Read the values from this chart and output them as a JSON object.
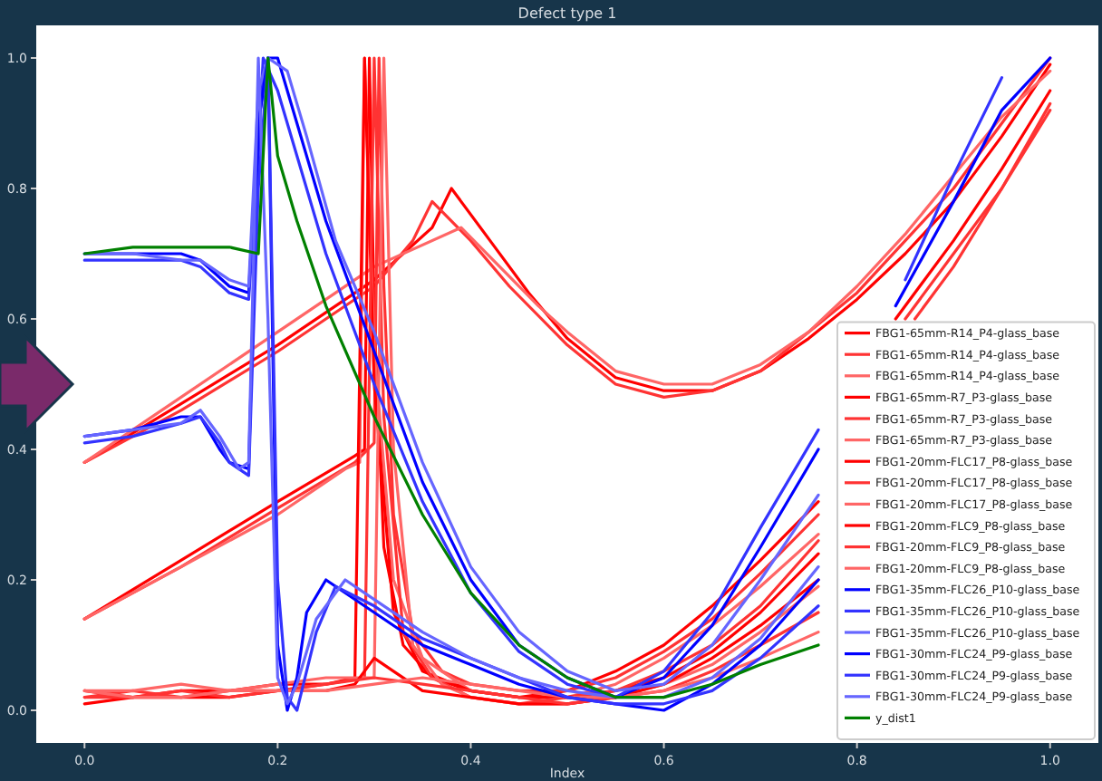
{
  "chart_data": {
    "type": "line",
    "title": "Defect type 1",
    "xlabel": "Index",
    "xlim": [
      -0.05,
      1.05
    ],
    "ylim": [
      -0.05,
      1.05
    ],
    "xticks": [
      {
        "value": 0,
        "label": "0.0"
      },
      0.2,
      0.4,
      0.6,
      0.8,
      {
        "value": 1,
        "label": "1.0"
      }
    ],
    "yticks": [
      {
        "value": 0,
        "label": "0.0"
      },
      0.2,
      0.4,
      0.6,
      0.8,
      {
        "value": 1,
        "label": "1.0"
      }
    ],
    "grid": false,
    "legend": "bottom right",
    "line_style": "solid",
    "marker": "none",
    "series": [
      {
        "name": "FBG1-65mm-R14_P4-glass_base",
        "color": "#ff0000",
        "x": [
          0,
          0.1,
          0.2,
          0.3,
          0.36,
          0.38,
          0.42,
          0.46,
          0.5,
          0.55,
          0.6,
          0.65,
          0.7,
          0.75,
          0.8,
          0.85,
          0.9,
          0.95,
          1.0
        ],
        "values": [
          0.38,
          0.47,
          0.56,
          0.66,
          0.74,
          0.8,
          0.72,
          0.64,
          0.57,
          0.51,
          0.49,
          0.49,
          0.52,
          0.57,
          0.63,
          0.7,
          0.78,
          0.88,
          0.99
        ]
      },
      {
        "name": "FBG1-65mm-R14_P4-glass_base",
        "color": "#ff3333",
        "x": [
          0,
          0.1,
          0.2,
          0.3,
          0.34,
          0.36,
          0.4,
          0.44,
          0.5,
          0.55,
          0.6,
          0.65,
          0.7,
          0.75,
          0.8,
          0.85,
          0.9,
          0.95,
          1.0
        ],
        "values": [
          0.38,
          0.46,
          0.55,
          0.65,
          0.72,
          0.78,
          0.72,
          0.65,
          0.56,
          0.5,
          0.48,
          0.49,
          0.52,
          0.58,
          0.64,
          0.72,
          0.8,
          0.9,
          1.0
        ]
      },
      {
        "name": "FBG1-65mm-R14_P4-glass_base",
        "color": "#ff6666",
        "x": [
          0,
          0.1,
          0.2,
          0.3,
          0.39,
          0.43,
          0.47,
          0.5,
          0.55,
          0.6,
          0.65,
          0.7,
          0.75,
          0.8,
          0.85,
          0.9,
          0.95,
          1.0
        ],
        "values": [
          0.38,
          0.48,
          0.58,
          0.68,
          0.74,
          0.68,
          0.62,
          0.58,
          0.52,
          0.5,
          0.5,
          0.53,
          0.58,
          0.65,
          0.73,
          0.82,
          0.91,
          0.98
        ]
      },
      {
        "name": "FBG1-65mm-R7_P3-glass_base",
        "color": "#ff0000",
        "x": [
          0,
          0.1,
          0.2,
          0.28,
          0.29,
          0.295,
          0.3,
          0.31,
          0.33,
          0.36,
          0.4,
          0.45,
          0.5,
          0.55,
          0.6,
          0.65,
          0.7,
          0.76,
          0.8,
          0.84,
          0.9,
          0.95,
          1.0
        ],
        "values": [
          0.14,
          0.23,
          0.32,
          0.39,
          0.4,
          1.0,
          0.6,
          0.25,
          0.1,
          0.05,
          0.03,
          0.02,
          0.03,
          0.06,
          0.1,
          0.16,
          0.23,
          0.32,
          null,
          0.6,
          0.72,
          0.83,
          0.95
        ]
      },
      {
        "name": "FBG1-65mm-R7_P3-glass_base",
        "color": "#ff3333",
        "x": [
          0,
          0.1,
          0.2,
          0.28,
          0.3,
          0.305,
          0.31,
          0.32,
          0.34,
          0.37,
          0.4,
          0.45,
          0.5,
          0.55,
          0.6,
          0.65,
          0.7,
          0.76,
          0.8,
          0.85,
          0.9,
          0.95,
          1.0
        ],
        "values": [
          0.14,
          0.22,
          0.31,
          0.38,
          0.41,
          1.0,
          0.65,
          0.3,
          0.12,
          0.06,
          0.04,
          0.03,
          0.03,
          0.05,
          0.09,
          0.14,
          0.21,
          0.3,
          null,
          0.6,
          0.7,
          0.8,
          0.92
        ]
      },
      {
        "name": "FBG1-65mm-R7_P3-glass_base",
        "color": "#ff6666",
        "x": [
          0,
          0.1,
          0.2,
          0.27,
          0.285,
          0.29,
          0.3,
          0.32,
          0.35,
          0.4,
          0.45,
          0.5,
          0.55,
          0.6,
          0.65,
          0.7,
          0.76
        ],
        "values": [
          0.14,
          0.22,
          0.3,
          0.37,
          0.38,
          1.0,
          0.55,
          0.2,
          0.08,
          0.03,
          0.02,
          0.02,
          0.04,
          0.08,
          0.13,
          0.19,
          0.27
        ]
      },
      {
        "name": "FBG1-20mm-FLC17_P8-glass_base",
        "color": "#ff0000",
        "x": [
          0,
          0.05,
          0.1,
          0.15,
          0.2,
          0.25,
          0.28,
          0.29,
          0.3,
          0.32,
          0.35,
          0.4,
          0.45,
          0.5,
          0.55,
          0.6,
          0.65,
          0.7,
          0.76
        ],
        "values": [
          0.03,
          0.02,
          0.03,
          0.03,
          0.04,
          0.04,
          0.05,
          1.0,
          0.5,
          0.15,
          0.06,
          0.03,
          0.02,
          0.02,
          0.03,
          0.05,
          0.09,
          0.15,
          0.24
        ]
      },
      {
        "name": "FBG1-20mm-FLC17_P8-glass_base",
        "color": "#ff3333",
        "x": [
          0,
          0.05,
          0.1,
          0.15,
          0.2,
          0.25,
          0.29,
          0.3,
          0.31,
          0.33,
          0.36,
          0.4,
          0.45,
          0.5,
          0.55,
          0.6,
          0.65,
          0.7,
          0.76,
          0.8,
          0.86,
          0.9,
          0.95,
          1.0
        ],
        "values": [
          0.02,
          0.03,
          0.02,
          0.03,
          0.03,
          0.04,
          0.05,
          1.0,
          0.45,
          0.12,
          0.05,
          0.02,
          0.01,
          0.02,
          0.03,
          0.06,
          0.1,
          0.16,
          0.26,
          null,
          0.6,
          0.68,
          0.8,
          0.93
        ]
      },
      {
        "name": "FBG1-20mm-FLC17_P8-glass_base",
        "color": "#ff6666",
        "x": [
          0,
          0.05,
          0.1,
          0.15,
          0.2,
          0.25,
          0.3,
          0.31,
          0.32,
          0.34,
          0.37,
          0.4,
          0.45,
          0.5,
          0.55,
          0.6,
          0.65,
          0.7,
          0.76
        ],
        "values": [
          0.03,
          0.03,
          0.04,
          0.03,
          0.04,
          0.05,
          0.05,
          1.0,
          0.4,
          0.1,
          0.04,
          0.02,
          0.01,
          0.01,
          0.02,
          0.04,
          0.07,
          0.12,
          0.19
        ]
      },
      {
        "name": "FBG1-20mm-FLC9_P8-glass_base",
        "color": "#ff0000",
        "x": [
          0,
          0.05,
          0.1,
          0.15,
          0.2,
          0.25,
          0.28,
          0.3,
          0.32,
          0.35,
          0.4,
          0.45,
          0.5,
          0.55,
          0.6,
          0.65,
          0.7,
          0.76
        ],
        "values": [
          0.01,
          0.02,
          0.02,
          0.02,
          0.03,
          0.03,
          0.04,
          0.08,
          0.06,
          0.03,
          0.02,
          0.01,
          0.01,
          0.02,
          0.04,
          0.08,
          0.13,
          0.2
        ]
      },
      {
        "name": "FBG1-20mm-FLC9_P8-glass_base",
        "color": "#ff3333",
        "x": [
          0,
          0.05,
          0.1,
          0.15,
          0.2,
          0.25,
          0.3,
          0.35,
          0.4,
          0.45,
          0.5,
          0.55,
          0.6,
          0.65,
          0.7,
          0.76
        ],
        "values": [
          0.02,
          0.02,
          0.03,
          0.02,
          0.03,
          0.04,
          0.05,
          0.04,
          0.03,
          0.02,
          0.01,
          0.02,
          0.03,
          0.06,
          0.1,
          0.15
        ]
      },
      {
        "name": "FBG1-20mm-FLC9_P8-glass_base",
        "color": "#ff6666",
        "x": [
          0,
          0.05,
          0.1,
          0.15,
          0.2,
          0.25,
          0.3,
          0.35,
          0.4,
          0.45,
          0.5,
          0.55,
          0.6,
          0.65,
          0.7,
          0.76
        ],
        "values": [
          0.03,
          0.02,
          0.02,
          0.03,
          0.03,
          0.03,
          0.04,
          0.05,
          0.04,
          0.03,
          0.02,
          0.02,
          0.03,
          0.05,
          0.08,
          0.12
        ]
      },
      {
        "name": "FBG1-35mm-FLC26_P10-glass_base",
        "color": "#0000ff",
        "x": [
          0,
          0.05,
          0.1,
          0.12,
          0.15,
          0.17,
          0.18,
          0.19,
          0.2,
          0.22,
          0.25,
          0.3,
          0.35,
          0.4,
          0.45,
          0.5,
          0.55,
          0.6,
          0.65,
          0.7,
          0.76,
          0.8,
          0.84,
          0.9,
          0.95,
          1.0
        ],
        "values": [
          0.7,
          0.7,
          0.7,
          0.69,
          0.65,
          0.64,
          0.9,
          1.0,
          1.0,
          0.9,
          0.75,
          0.55,
          0.35,
          0.2,
          0.1,
          0.05,
          0.02,
          0.05,
          0.13,
          0.25,
          0.4,
          null,
          0.62,
          0.78,
          0.92,
          1.0
        ]
      },
      {
        "name": "FBG1-35mm-FLC26_P10-glass_base",
        "color": "#3333ff",
        "x": [
          0,
          0.05,
          0.1,
          0.12,
          0.15,
          0.17,
          0.18,
          0.185,
          0.2,
          0.22,
          0.25,
          0.3,
          0.35,
          0.4,
          0.45,
          0.5,
          0.55,
          0.6,
          0.65,
          0.7,
          0.76,
          0.8,
          0.85,
          0.9,
          0.95
        ],
        "values": [
          0.69,
          0.69,
          0.69,
          0.68,
          0.64,
          0.63,
          0.85,
          1.0,
          0.95,
          0.85,
          0.7,
          0.5,
          0.32,
          0.18,
          0.09,
          0.04,
          0.02,
          0.06,
          0.15,
          0.28,
          0.43,
          null,
          0.66,
          0.82,
          0.97
        ]
      },
      {
        "name": "FBG1-35mm-FLC26_P10-glass_base",
        "color": "#6666ff",
        "x": [
          0,
          0.05,
          0.1,
          0.12,
          0.15,
          0.17,
          0.18,
          0.19,
          0.21,
          0.23,
          0.26,
          0.3,
          0.35,
          0.4,
          0.45,
          0.5,
          0.55,
          0.6,
          0.65,
          0.7,
          0.76
        ],
        "values": [
          0.7,
          0.7,
          0.69,
          0.69,
          0.66,
          0.65,
          0.95,
          1.0,
          0.98,
          0.88,
          0.72,
          0.58,
          0.38,
          0.22,
          0.12,
          0.06,
          0.03,
          0.04,
          0.1,
          0.2,
          0.33
        ]
      },
      {
        "name": "FBG1-30mm-FLC24_P9-glass_base",
        "color": "#0000ff",
        "x": [
          0,
          0.05,
          0.1,
          0.12,
          0.14,
          0.15,
          0.17,
          0.18,
          0.19,
          0.2,
          0.21,
          0.22,
          0.23,
          0.25,
          0.3,
          0.35,
          0.4,
          0.45,
          0.5,
          0.55,
          0.6,
          0.65,
          0.7,
          0.76
        ],
        "values": [
          0.42,
          0.43,
          0.45,
          0.45,
          0.4,
          0.38,
          0.37,
          0.9,
          1.0,
          0.1,
          0.0,
          0.05,
          0.15,
          0.2,
          0.15,
          0.1,
          0.07,
          0.04,
          0.02,
          0.01,
          0.0,
          0.04,
          0.1,
          0.2
        ]
      },
      {
        "name": "FBG1-30mm-FLC24_P9-glass_base",
        "color": "#3333ff",
        "x": [
          0,
          0.05,
          0.1,
          0.12,
          0.14,
          0.15,
          0.17,
          0.18,
          0.19,
          0.2,
          0.21,
          0.22,
          0.24,
          0.26,
          0.3,
          0.35,
          0.4,
          0.45,
          0.5,
          0.55,
          0.6,
          0.65,
          0.7,
          0.76
        ],
        "values": [
          0.41,
          0.42,
          0.44,
          0.45,
          0.41,
          0.38,
          0.36,
          0.8,
          1.0,
          0.2,
          0.02,
          0.0,
          0.12,
          0.19,
          0.16,
          0.11,
          0.08,
          0.05,
          0.02,
          0.01,
          0.01,
          0.03,
          0.08,
          0.16
        ]
      },
      {
        "name": "FBG1-30mm-FLC24_P9-glass_base",
        "color": "#6666ff",
        "x": [
          0,
          0.05,
          0.1,
          0.12,
          0.14,
          0.16,
          0.17,
          0.18,
          0.19,
          0.2,
          0.21,
          0.22,
          0.24,
          0.27,
          0.3,
          0.35,
          0.4,
          0.45,
          0.5,
          0.55,
          0.6,
          0.65,
          0.7,
          0.76
        ],
        "values": [
          0.42,
          0.43,
          0.44,
          0.46,
          0.42,
          0.37,
          0.38,
          1.0,
          0.6,
          0.05,
          0.01,
          0.04,
          0.14,
          0.2,
          0.17,
          0.12,
          0.08,
          0.05,
          0.03,
          0.02,
          0.02,
          0.05,
          0.11,
          0.22
        ]
      },
      {
        "name": "y_dist1",
        "color": "#008000",
        "x": [
          0,
          0.05,
          0.1,
          0.15,
          0.18,
          0.19,
          0.2,
          0.22,
          0.25,
          0.3,
          0.35,
          0.4,
          0.45,
          0.5,
          0.55,
          0.6,
          0.65,
          0.7,
          0.76
        ],
        "values": [
          0.7,
          0.71,
          0.71,
          0.71,
          0.7,
          1.0,
          0.85,
          0.75,
          0.62,
          0.45,
          0.3,
          0.18,
          0.1,
          0.05,
          0.02,
          0.02,
          0.04,
          0.07,
          0.1
        ]
      }
    ]
  }
}
